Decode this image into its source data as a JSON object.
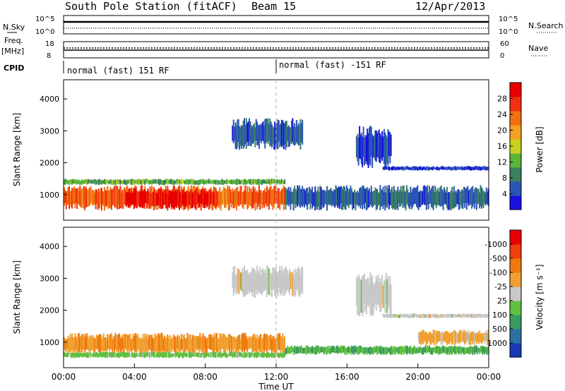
{
  "header": {
    "station": "South Pole Station (fitACF)",
    "beam": "Beam 15",
    "date": "12/Apr/2013"
  },
  "top_panels": {
    "nsky_label": "N.Sky",
    "nsky_ticks": [
      "10^5",
      "10^0"
    ],
    "nsearch_label": "N.Search",
    "nsearch_ticks": [
      "10^5",
      "10^0"
    ],
    "freq_label": "Freq.",
    "freq_unit": "[MHz]",
    "freq_ticks": [
      "18",
      "8"
    ],
    "nave_label": "Nave",
    "nave_ticks": [
      "60",
      "0"
    ],
    "cpid_label": "CPID",
    "cpid_segments": [
      "normal (fast) 151 RF",
      "normal (fast) -151 RF"
    ]
  },
  "axes": {
    "xlabel": "Time UT",
    "ylabel": "Slant Range [km]",
    "xticks": [
      "00:00",
      "04:00",
      "08:00",
      "12:00",
      "16:00",
      "20:00",
      "00:00"
    ],
    "yticks": [
      "1000",
      "2000",
      "3000",
      "4000"
    ]
  },
  "colorbars": {
    "power": {
      "label": "Power [dB]",
      "ticks": [
        "4",
        "8",
        "12",
        "16",
        "20",
        "24",
        "28"
      ],
      "colors": [
        "#1a10e0",
        "#2a55b5",
        "#3a8060",
        "#5ab53a",
        "#c8d020",
        "#f5a020",
        "#f07010",
        "#f03010",
        "#e80000"
      ]
    },
    "velocity": {
      "label": "Velocity [m s⁻¹]",
      "ticks": [
        "1000",
        "500",
        "100",
        "25",
        "-25",
        "-100",
        "-500",
        "-1000"
      ],
      "colors": [
        "#1a3ab5",
        "#2a70a0",
        "#3a9a60",
        "#60c040",
        "#c8c8c8",
        "#f0a030",
        "#f07a10",
        "#f04010",
        "#e80000"
      ]
    }
  },
  "chart_data": [
    {
      "type": "heatmap",
      "title": "Power",
      "xlabel": "Time UT",
      "ylabel": "Slant Range [km]",
      "xlim": [
        0,
        24
      ],
      "ylim": [
        200,
        4600
      ],
      "colorbar": "Power [dB]",
      "colorbar_range": [
        0,
        32
      ],
      "regions": [
        {
          "t0": 0.0,
          "t1": 12.5,
          "r0": 500,
          "r1": 1300,
          "value": 24
        },
        {
          "t0": 3.5,
          "t1": 8.5,
          "r0": 550,
          "r1": 1200,
          "value": 30
        },
        {
          "t0": 0.0,
          "t1": 12.5,
          "r0": 1300,
          "r1": 1500,
          "value": 12
        },
        {
          "t0": 9.5,
          "t1": 13.5,
          "r0": 2400,
          "r1": 3400,
          "value": 6
        },
        {
          "t0": 12.5,
          "t1": 24.0,
          "r0": 500,
          "r1": 1300,
          "value": 6
        },
        {
          "t0": 16.5,
          "t1": 18.5,
          "r0": 1800,
          "r1": 3200,
          "value": 5
        },
        {
          "t0": 18.0,
          "t1": 24.0,
          "r0": 1750,
          "r1": 1900,
          "value": 4
        }
      ]
    },
    {
      "type": "heatmap",
      "title": "Velocity",
      "xlabel": "Time UT",
      "ylabel": "Slant Range [km]",
      "xlim": [
        0,
        24
      ],
      "ylim": [
        200,
        4600
      ],
      "colorbar": "Velocity [m s⁻¹]",
      "colorbar_range": [
        -1000,
        1000
      ],
      "regions": [
        {
          "t0": 0.0,
          "t1": 12.5,
          "r0": 600,
          "r1": 1300,
          "value": -300
        },
        {
          "t0": 0.0,
          "t1": 12.5,
          "r0": 500,
          "r1": 700,
          "value": 200
        },
        {
          "t0": 9.5,
          "t1": 13.5,
          "r0": 2400,
          "r1": 3400,
          "value": 0
        },
        {
          "t0": 12.5,
          "t1": 24.0,
          "r0": 600,
          "r1": 900,
          "value": 300
        },
        {
          "t0": 20.0,
          "t1": 24.0,
          "r0": 900,
          "r1": 1400,
          "value": -200
        },
        {
          "t0": 16.5,
          "t1": 18.5,
          "r0": 1800,
          "r1": 3200,
          "value": 0
        },
        {
          "t0": 18.0,
          "t1": 24.0,
          "r0": 1750,
          "r1": 1900,
          "value": 0
        }
      ]
    }
  ]
}
